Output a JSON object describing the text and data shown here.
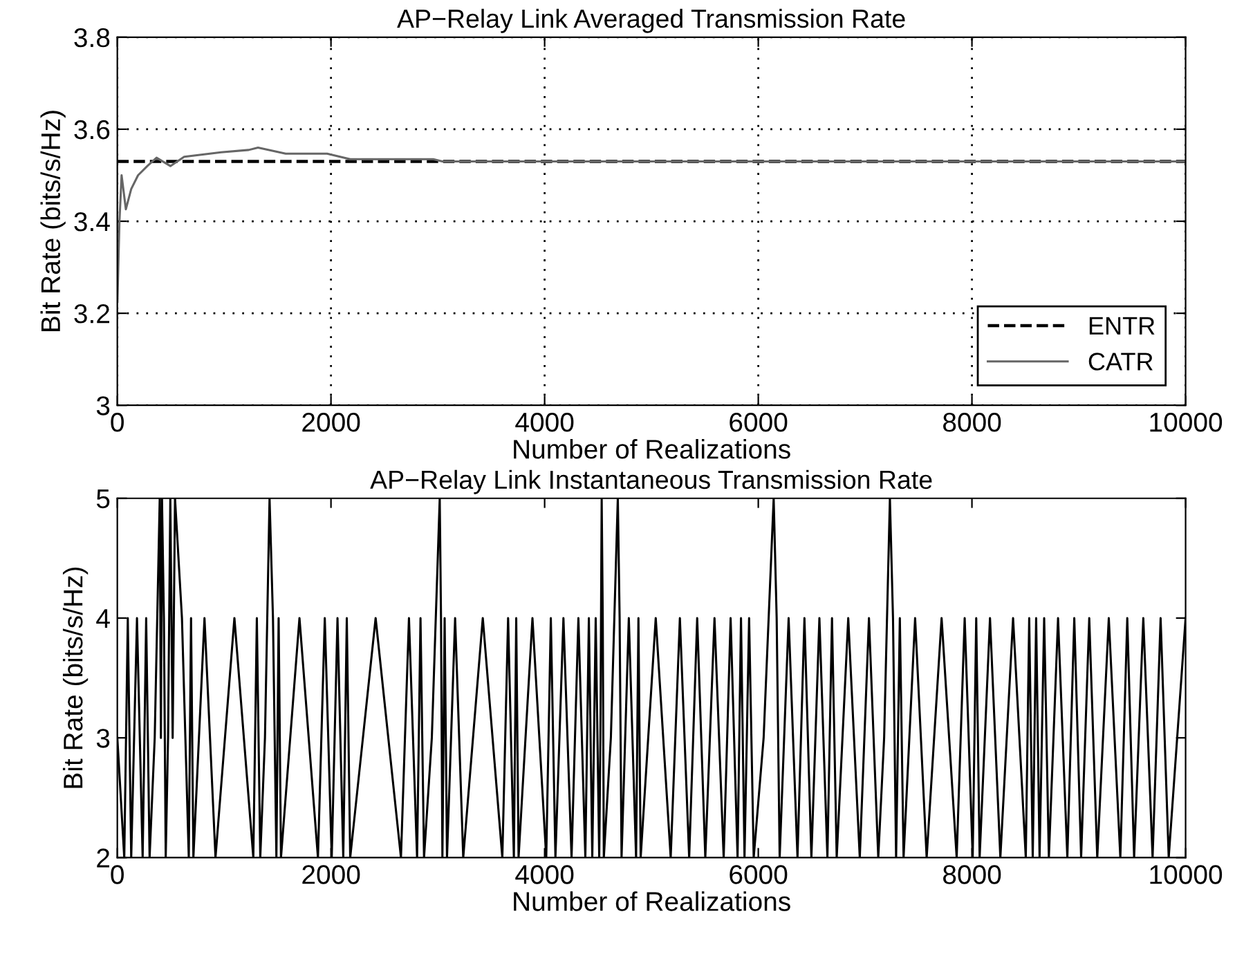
{
  "chart_data": [
    {
      "type": "line",
      "title": "AP−Relay Link Averaged Transmission Rate",
      "xlabel": "Number of Realizations",
      "ylabel": "Bit Rate (bits/s/Hz)",
      "xlim": [
        0,
        10000
      ],
      "xticks": [
        0,
        2000,
        4000,
        6000,
        8000,
        10000
      ],
      "ylim": [
        3,
        3.8
      ],
      "yticks": [
        3,
        3.2,
        3.4,
        3.6,
        3.8
      ],
      "grid": true,
      "legend": "bottom right",
      "series": [
        {
          "name": "ENTR",
          "color": "#000000",
          "line_style": "dashed",
          "x": [
            0,
            10000
          ],
          "values": [
            3.53,
            3.53
          ]
        },
        {
          "name": "CATR",
          "color": "#666666",
          "line_style": "solid",
          "x": [
            1,
            20,
            40,
            80,
            130,
            194,
            281,
            367,
            497,
            626,
            799,
            971,
            1230,
            1317,
            1576,
            1964,
            2180,
            2525,
            2957,
            3043,
            4000,
            6000,
            8000,
            10000
          ],
          "values": [
            3.225,
            3.4,
            3.5,
            3.426,
            3.47,
            3.5,
            3.52,
            3.538,
            3.52,
            3.54,
            3.545,
            3.55,
            3.555,
            3.56,
            3.547,
            3.547,
            3.535,
            3.535,
            3.535,
            3.53,
            3.53,
            3.53,
            3.53,
            3.53
          ]
        }
      ]
    },
    {
      "type": "line",
      "title": "AP−Relay Link Instantaneous Transmission Rate",
      "xlabel": "Number of Realizations",
      "ylabel": "Bit Rate (bits/s/Hz)",
      "xlim": [
        0,
        10000
      ],
      "xticks": [
        0,
        2000,
        4000,
        6000,
        8000,
        10000
      ],
      "ylim": [
        2,
        5
      ],
      "yticks": [
        2,
        3,
        4,
        5
      ],
      "grid": false,
      "series": [
        {
          "color": "#000000",
          "line_style": "solid",
          "x": [
            0,
            65,
            98,
            130,
            184,
            237,
            270,
            302,
            350,
            397,
            408,
            418,
            436,
            453,
            475,
            496,
            518,
            540,
            605,
            669,
            690,
            712,
            816,
            919,
            1096,
            1273,
            1306,
            1338,
            1382,
            1425,
            1457,
            1489,
            1510,
            1532,
            1705,
            1878,
            1942,
            2007,
            2061,
            2115,
            2148,
            2180,
            2418,
            2655,
            2730,
            2806,
            2838,
            2871,
            2944,
            3018,
            3030,
            3043,
            3064,
            3086,
            3162,
            3238,
            3421,
            3604,
            3658,
            3712,
            3734,
            3756,
            3886,
            4015,
            4058,
            4101,
            4176,
            4252,
            4316,
            4381,
            4414,
            4446,
            4478,
            4511,
            4522,
            4534,
            4544,
            4554,
            4620,
            4685,
            4702,
            4720,
            4788,
            4856,
            4878,
            4899,
            5040,
            5180,
            5266,
            5353,
            5428,
            5504,
            5590,
            5676,
            5741,
            5806,
            5838,
            5871,
            5914,
            5957,
            6050,
            6144,
            6172,
            6200,
            6284,
            6367,
            6432,
            6497,
            6572,
            6647,
            6690,
            6734,
            6842,
            6950,
            7036,
            7123,
            7178,
            7232,
            7261,
            7290,
            7325,
            7360,
            7468,
            7576,
            7716,
            7857,
            7932,
            8007,
            8040,
            8072,
            8169,
            8266,
            8385,
            8504,
            8536,
            8569,
            8601,
            8633,
            8676,
            8720,
            8806,
            8893,
            8958,
            9022,
            9098,
            9173,
            9281,
            9389,
            9454,
            9518,
            9604,
            9691,
            9766,
            9842,
            10000
          ],
          "values": [
            3,
            2,
            4,
            2,
            4,
            2,
            4,
            2,
            3,
            5,
            3,
            5,
            4,
            2,
            3,
            5,
            3,
            5,
            4,
            2,
            4,
            2,
            4,
            2,
            4,
            2,
            4,
            2,
            3,
            5,
            4,
            2,
            4,
            2,
            4,
            2,
            4,
            2,
            4,
            2,
            4,
            2,
            4,
            2,
            4,
            2,
            4,
            2,
            3,
            5,
            4,
            2,
            4,
            2,
            4,
            2,
            4,
            2,
            4,
            2,
            4,
            2,
            4,
            2,
            4,
            2,
            4,
            2,
            4,
            2,
            4,
            2,
            4,
            2,
            3,
            5,
            4,
            2,
            3,
            5,
            4,
            2,
            4,
            2,
            4,
            2,
            4,
            2,
            4,
            2,
            4,
            2,
            4,
            2,
            4,
            2,
            4,
            2,
            4,
            2,
            3,
            5,
            4,
            2,
            4,
            2,
            4,
            2,
            4,
            2,
            4,
            2,
            4,
            2,
            4,
            2,
            3,
            5,
            4,
            2,
            4,
            2,
            4,
            2,
            4,
            2,
            4,
            2,
            4,
            2,
            4,
            2,
            4,
            2,
            4,
            2,
            4,
            2,
            4,
            2,
            4,
            2,
            4,
            2,
            4,
            2,
            4,
            2,
            4,
            2,
            4,
            2,
            4,
            2,
            4
          ]
        }
      ]
    }
  ]
}
